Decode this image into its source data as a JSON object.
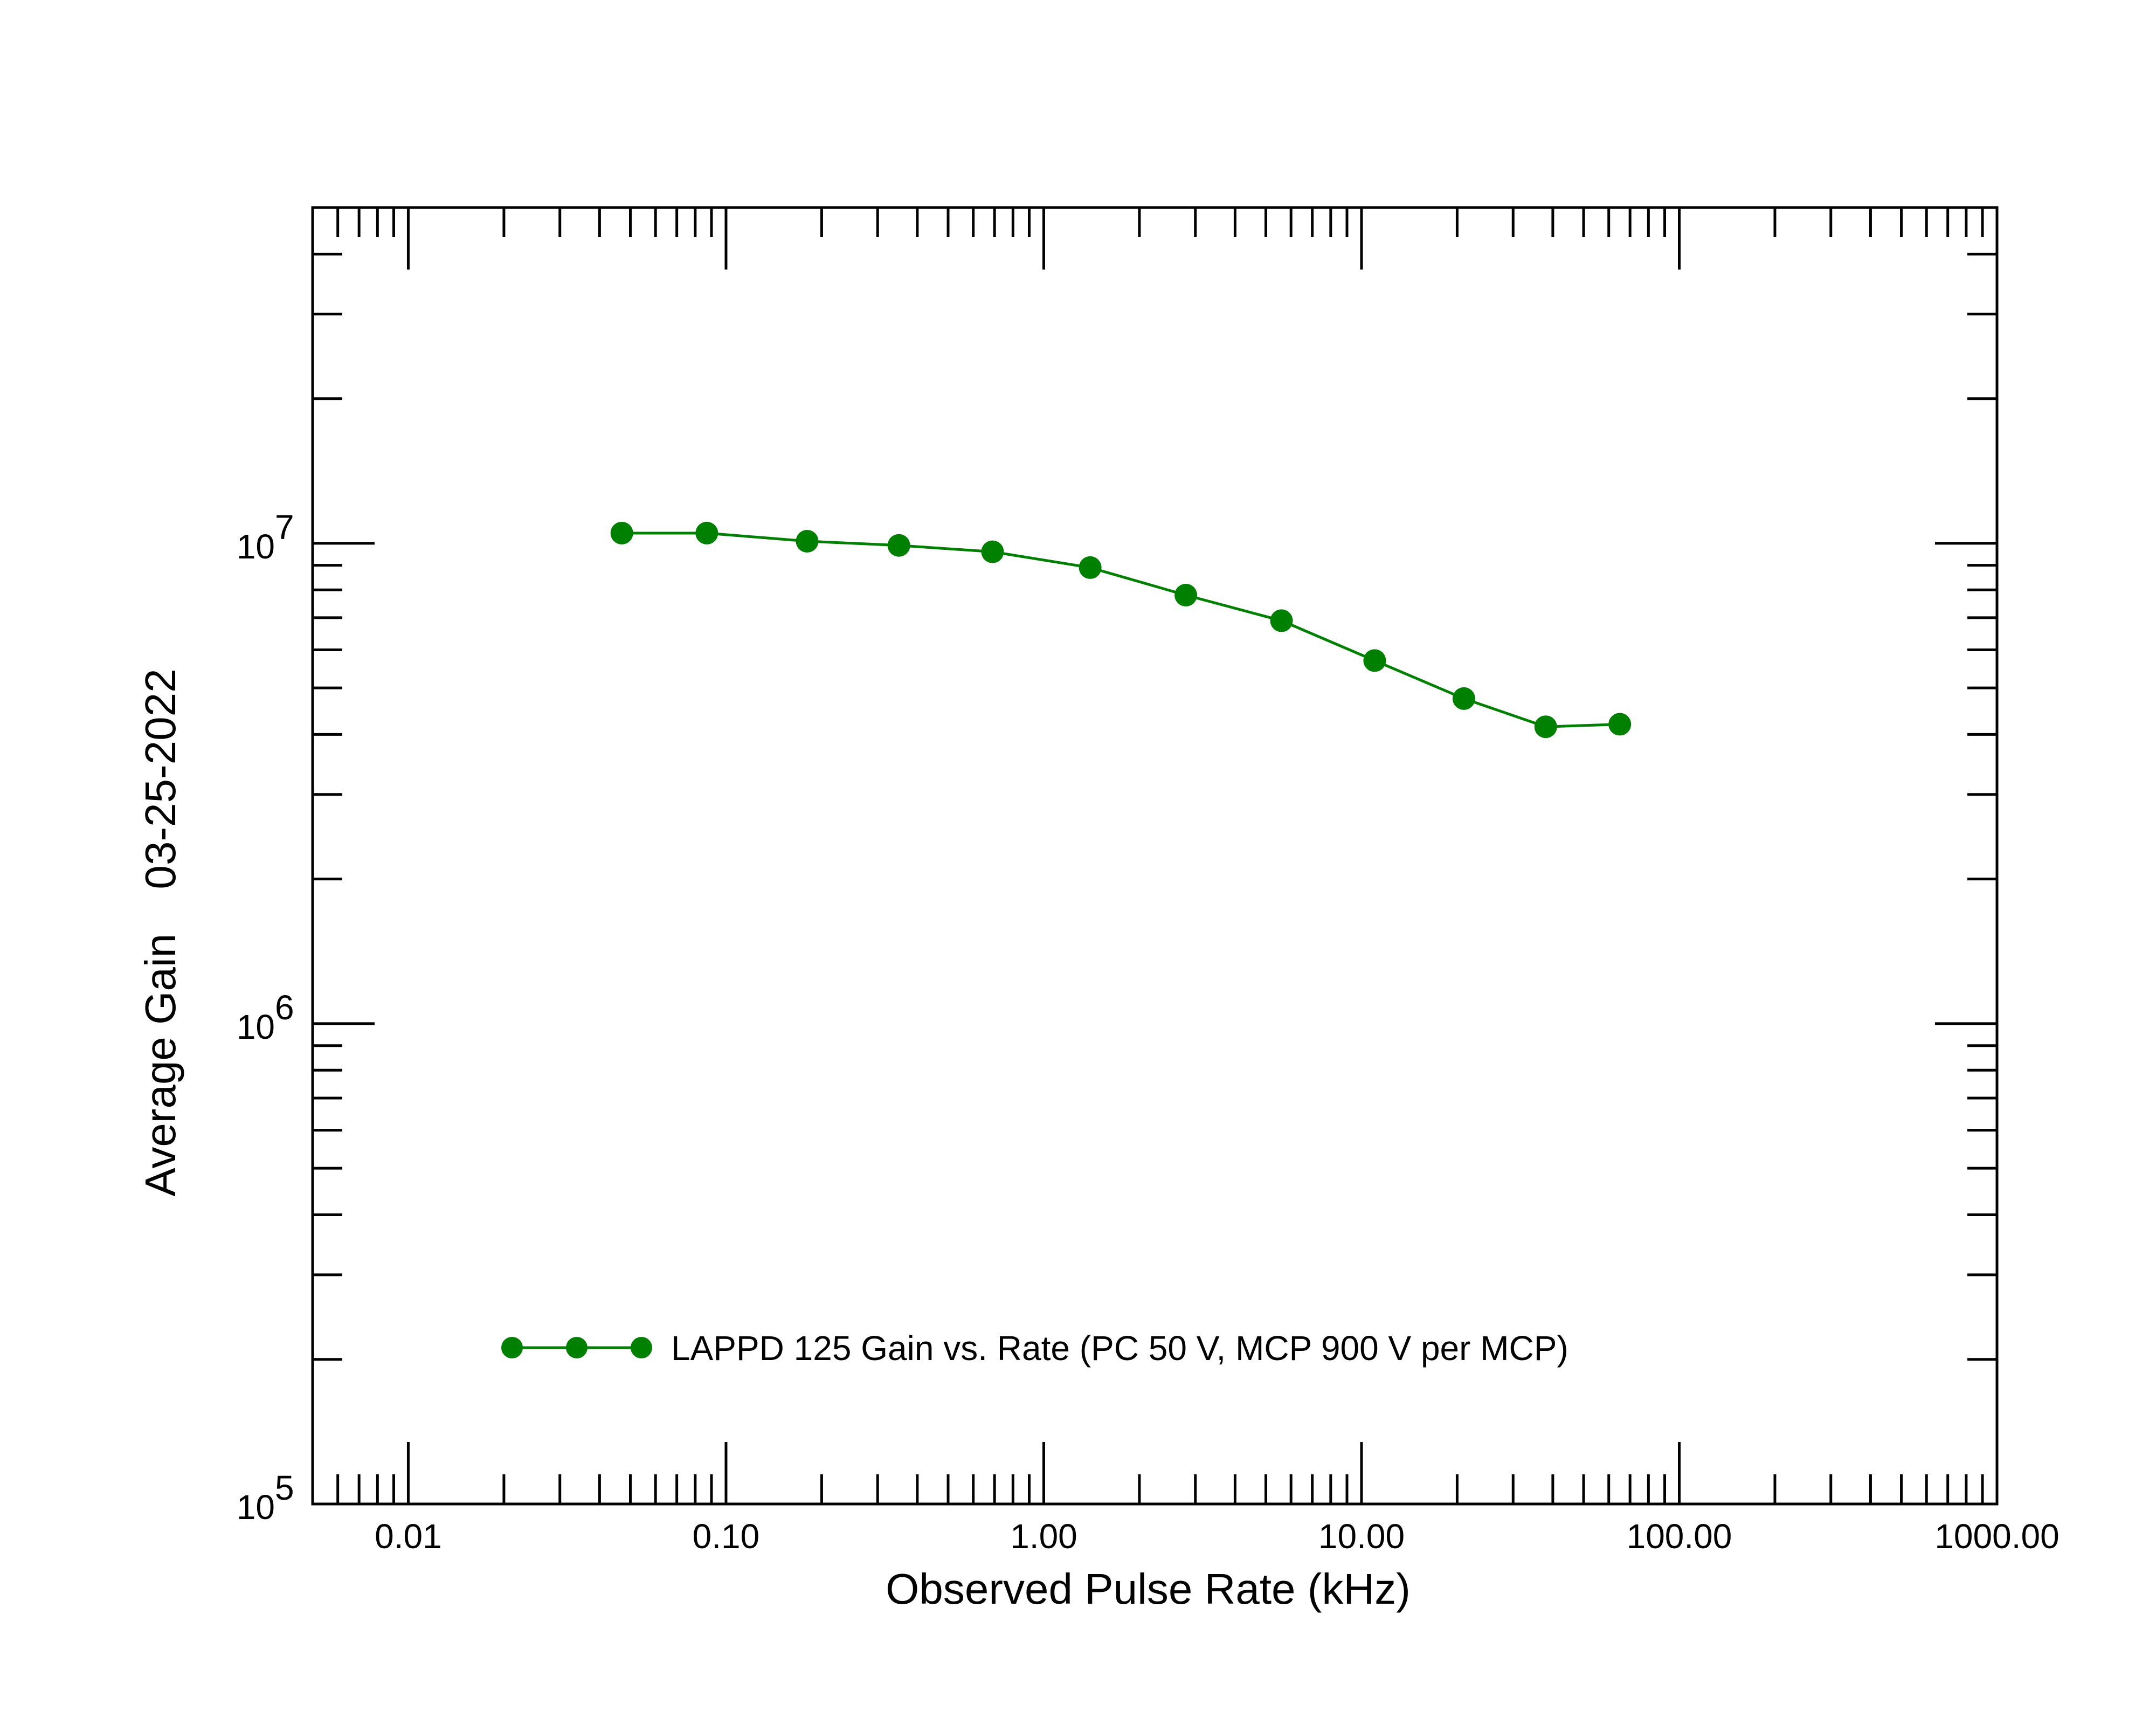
{
  "chart_data": {
    "type": "line",
    "title": "",
    "xlabel": "Observed Pulse Rate (kHz)",
    "ylabel": "Average Gain",
    "ylabel_date": "03-25-2022",
    "xscale": "log",
    "yscale": "log",
    "xlim": [
      0.005,
      1000
    ],
    "ylim": [
      100000,
      50000000
    ],
    "x_tick_labels": [
      {
        "value": 0.01,
        "label": "0.01"
      },
      {
        "value": 0.1,
        "label": "0.10"
      },
      {
        "value": 1,
        "label": "1.00"
      },
      {
        "value": 10,
        "label": "10.00"
      },
      {
        "value": 100,
        "label": "100.00"
      },
      {
        "value": 1000,
        "label": "1000.00"
      }
    ],
    "y_tick_labels": [
      {
        "value": 100000,
        "base": "10",
        "exp": "5"
      },
      {
        "value": 1000000,
        "base": "10",
        "exp": "6"
      },
      {
        "value": 10000000,
        "base": "10",
        "exp": "7"
      }
    ],
    "grid": false,
    "legend_position": "bottom-center",
    "series": [
      {
        "name": "LAPPD 125 Gain vs. Rate (PC 50 V, MCP 900 V per MCP)",
        "color": "#008000",
        "marker": "circle",
        "x": [
          0.047,
          0.087,
          0.18,
          0.35,
          0.69,
          1.4,
          2.8,
          5.6,
          11.0,
          21.0,
          38.0,
          65.0
        ],
        "y": [
          10500000,
          10500000,
          10100000,
          9900000,
          9600000,
          8900000,
          7800000,
          6900000,
          5700000,
          4750000,
          4150000,
          4200000
        ]
      }
    ]
  }
}
